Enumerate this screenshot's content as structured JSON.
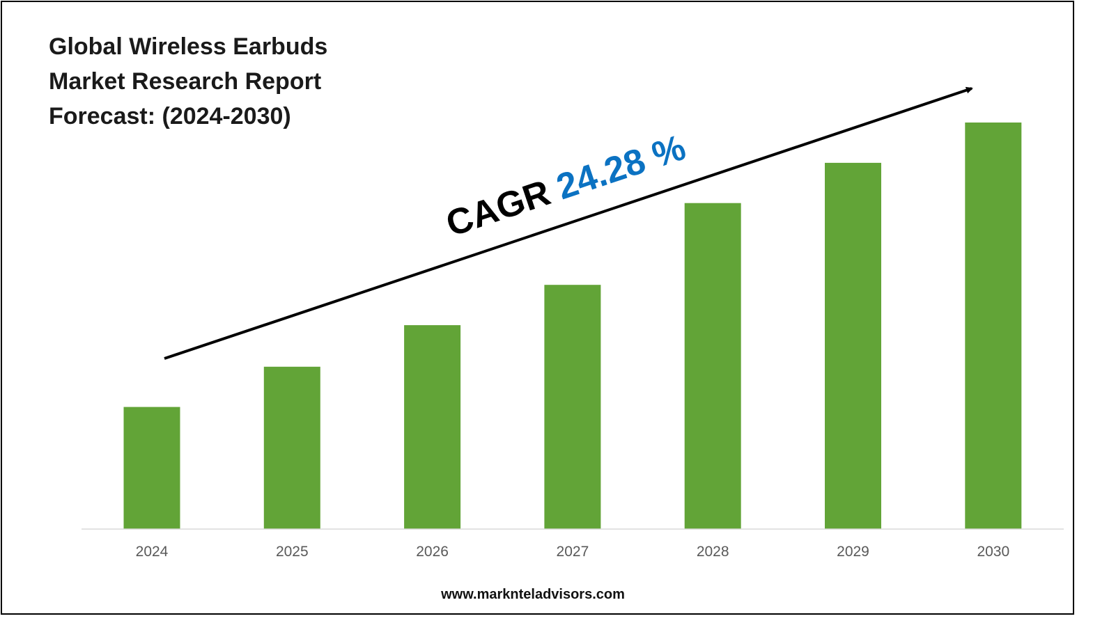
{
  "chart_data": {
    "type": "bar",
    "title": "Global Wireless Earbuds\nMarket Research Report\nForecast: (2024-2030)",
    "categories": [
      "2024",
      "2025",
      "2026",
      "2027",
      "2028",
      "2029",
      "2030"
    ],
    "values": [
      1.0,
      1.33,
      1.67,
      2.0,
      2.67,
      3.0,
      3.33
    ],
    "xlabel": "",
    "ylabel": "",
    "ylim": [
      0,
      3.33
    ],
    "grid": false,
    "legend": "none",
    "bar_color": "#62A437",
    "annotation": {
      "prefix": "CAGR",
      "value": "24.28 %",
      "prefix_color": "#000000",
      "value_color": "#0B72C2"
    }
  },
  "footer": {
    "website": "www.marknteladvisors.com"
  }
}
